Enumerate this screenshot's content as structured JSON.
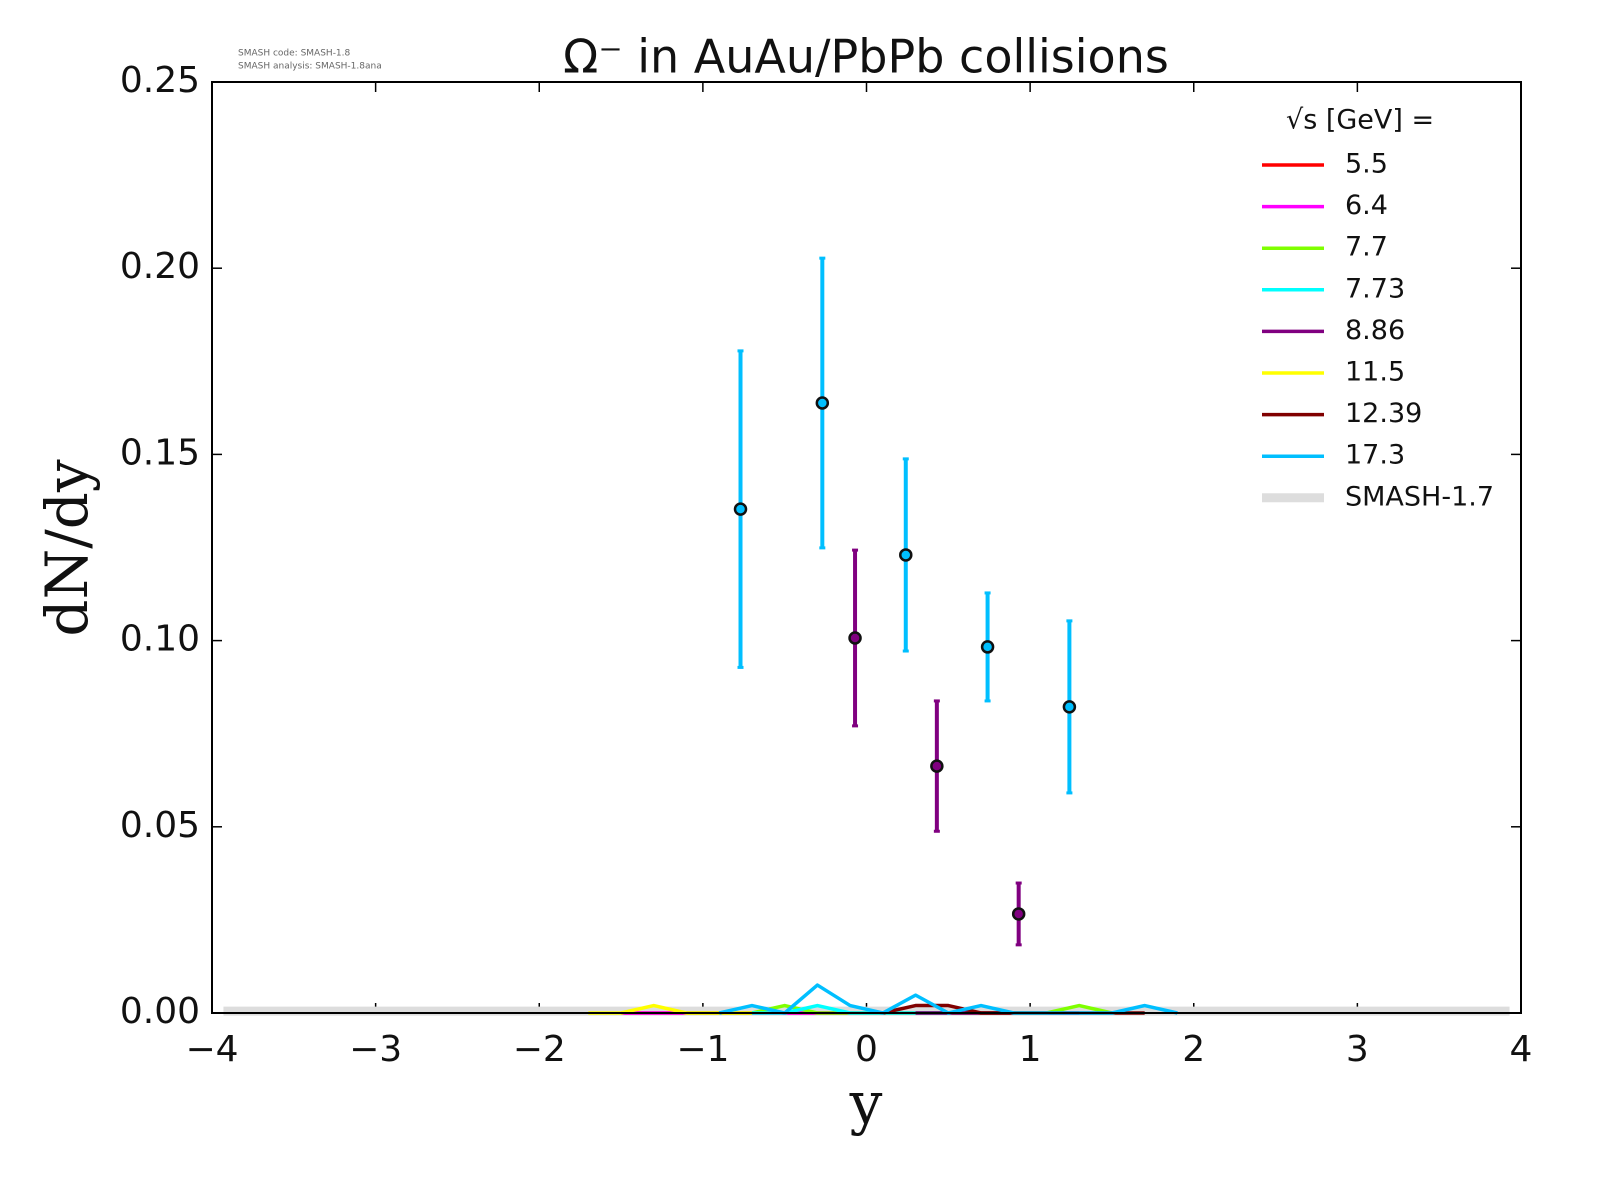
{
  "chart_data": {
    "type": "line",
    "title": "Ω⁻ in AuAu/PbPb collisions",
    "xlabel": "y",
    "ylabel": "dN/dy",
    "annotations": [
      "SMASH code:      SMASH-1.8",
      "SMASH analysis: SMASH-1.8ana"
    ],
    "legend_title": "√s [GeV] =",
    "legend": "upper right",
    "xlim": [
      -4,
      4
    ],
    "ylim": [
      0,
      0.25
    ],
    "xticks": [
      {
        "value": -4,
        "label": "−4"
      },
      {
        "value": -3,
        "label": "−3"
      },
      {
        "value": -2,
        "label": "−2"
      },
      {
        "value": -1,
        "label": "−1"
      },
      0,
      1,
      2,
      3,
      4
    ],
    "yticks": [
      {
        "value": 0,
        "label": "0.00"
      },
      {
        "value": 0.05,
        "label": "0.05"
      },
      {
        "value": 0.1,
        "label": "0.10"
      },
      {
        "value": 0.15,
        "label": "0.15"
      },
      {
        "value": 0.2,
        "label": "0.20"
      },
      {
        "value": 0.25,
        "label": "0.25"
      }
    ],
    "series": [
      {
        "name": "5.5",
        "color": "#ff0000",
        "x": [
          -1.5,
          -1.1,
          -0.7,
          -0.3,
          0.1,
          0.5,
          0.9,
          1.3
        ],
        "values": [
          0,
          0,
          0,
          0,
          0,
          0,
          0,
          0
        ]
      },
      {
        "name": "6.4",
        "color": "#ff00ff",
        "x": [
          -1.5,
          -1.1,
          -0.7,
          -0.3,
          0.1,
          0.5,
          0.9,
          1.3
        ],
        "values": [
          0,
          0,
          0,
          0,
          0,
          0,
          0,
          0
        ]
      },
      {
        "name": "7.7",
        "color": "#7fff00",
        "x": [
          -1.1,
          -0.9,
          -0.7,
          -0.5,
          -0.3,
          -0.1,
          0.1,
          0.3,
          0.5,
          0.7,
          0.9,
          1.1,
          1.3,
          1.5
        ],
        "values": [
          0,
          0,
          0,
          0.002,
          0,
          0,
          0,
          0,
          0,
          0,
          0,
          0,
          0.002,
          0
        ]
      },
      {
        "name": "7.73",
        "color": "#00ffff",
        "x": [
          -0.7,
          -0.5,
          -0.3,
          -0.1,
          0.1,
          0.3,
          0.5
        ],
        "values": [
          0,
          0,
          0.002,
          0,
          0,
          0,
          0
        ]
      },
      {
        "name": "8.86",
        "color": "#800080",
        "x": [
          0.3,
          0.5,
          0.7,
          0.9
        ],
        "values": [
          0,
          0,
          0,
          0
        ],
        "points": {
          "x": [
            -0.07,
            0.43,
            0.93
          ],
          "values": [
            0.1007,
            0.0663,
            0.0266
          ],
          "errors": [
            0.0236,
            0.0175,
            0.0083
          ]
        }
      },
      {
        "name": "11.5",
        "color": "#ffff00",
        "x": [
          -1.7,
          -1.5,
          -1.3,
          -1.1,
          -0.9,
          -0.7
        ],
        "values": [
          0,
          0,
          0.002,
          0,
          0,
          0
        ]
      },
      {
        "name": "12.39",
        "color": "#800000",
        "x": [
          0.1,
          0.3,
          0.5,
          0.7,
          0.9,
          1.1,
          1.3,
          1.5,
          1.7
        ],
        "values": [
          0,
          0.002,
          0.002,
          0,
          0,
          0,
          0,
          0,
          0
        ]
      },
      {
        "name": "17.3",
        "color": "#00bfff",
        "x": [
          -0.9,
          -0.7,
          -0.5,
          -0.3,
          -0.1,
          0.1,
          0.3,
          0.5,
          0.7,
          0.9,
          1.1,
          1.3,
          1.5,
          1.7,
          1.9
        ],
        "values": [
          0,
          0.002,
          0,
          0.0075,
          0.002,
          0,
          0.0048,
          0,
          0.002,
          0,
          0,
          0,
          0,
          0.002,
          0
        ],
        "points": {
          "x": [
            -0.77,
            -0.27,
            0.24,
            0.74,
            1.24
          ],
          "values": [
            0.1353,
            0.1638,
            0.123,
            0.0983,
            0.0822
          ],
          "errors": [
            0.0425,
            0.0389,
            0.0258,
            0.0145,
            0.0231
          ]
        }
      },
      {
        "name": "SMASH-1.7",
        "color": "#dddddd",
        "line_width": 9,
        "x": [
          -3.93,
          3.93
        ],
        "values": [
          0.0005,
          0.0005
        ]
      }
    ]
  }
}
